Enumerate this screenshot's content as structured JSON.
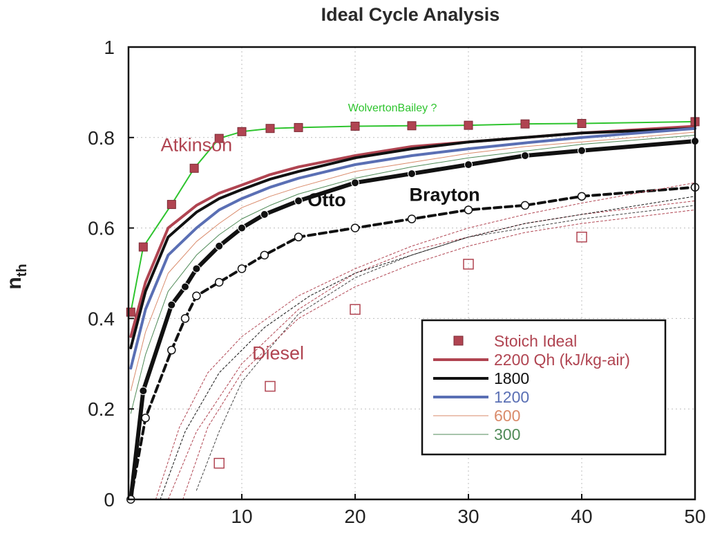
{
  "chart_data": {
    "type": "line",
    "title": "Ideal Cycle Analysis",
    "xlabel": "",
    "ylabel": "n",
    "ylabel_subscript": "th",
    "xlim": [
      0,
      50
    ],
    "ylim": [
      0,
      1
    ],
    "x_ticks": [
      10,
      20,
      30,
      40,
      50
    ],
    "y_ticks": [
      0,
      0.2,
      0.4,
      0.6,
      0.8,
      1
    ],
    "y_tick_labels": [
      "0",
      "0.2",
      "0.4",
      "0.6",
      "0.8",
      "1"
    ],
    "grid": true,
    "legend_position": "lower-right",
    "legend": [
      {
        "label": "Stoich Ideal",
        "color": "#b04451",
        "marker": "square"
      },
      {
        "label": "2200 Qh (kJ/kg-air)",
        "color": "#b04451",
        "width": 4
      },
      {
        "label": "1800",
        "color": "#111111",
        "width": 4
      },
      {
        "label": "1200",
        "color": "#5a6fb4",
        "width": 4
      },
      {
        "label": "600",
        "color": "#d98a6a",
        "width": 1
      },
      {
        "label": "300",
        "color": "#4f8a57",
        "width": 1
      }
    ],
    "annotations": [
      {
        "text": "Atkinson",
        "x": 6.0,
        "y": 0.77,
        "color": "#b04451",
        "size": 27,
        "bold": false
      },
      {
        "text": "WolvertonBailey ?",
        "x": 23.3,
        "y": 0.858,
        "color": "#2ec42e",
        "size": 16,
        "bold": false
      },
      {
        "text": "Otto",
        "x": 17.5,
        "y": 0.648,
        "color": "#111111",
        "size": 27,
        "bold": true
      },
      {
        "text": "Brayton",
        "x": 27.9,
        "y": 0.66,
        "color": "#111111",
        "size": 27,
        "bold": true
      },
      {
        "text": "Diesel",
        "x": 13.2,
        "y": 0.31,
        "color": "#b04451",
        "size": 27,
        "bold": false
      }
    ],
    "series": [
      {
        "name": "WolvertonBailey ?",
        "group": "Stoich Ideal",
        "color": "#2ec42e",
        "width": 2,
        "dash": "",
        "marker": "square",
        "marker_color": "#b04451",
        "x": [
          0.2,
          1.3,
          3.8,
          5.8,
          8,
          10,
          12.5,
          15,
          20,
          25,
          30,
          35,
          40,
          50
        ],
        "y": [
          0.414,
          0.558,
          0.652,
          0.732,
          0.798,
          0.813,
          0.82,
          0.822,
          0.825,
          0.826,
          0.827,
          0.83,
          0.831,
          0.835
        ]
      },
      {
        "name": "Atkinson 2200",
        "color": "#b04451",
        "width": 4,
        "dash": "",
        "x": [
          0.2,
          1.5,
          3.5,
          6,
          8,
          10,
          12.5,
          15,
          20,
          25,
          30,
          35,
          40,
          50
        ],
        "y": [
          0.36,
          0.48,
          0.6,
          0.65,
          0.677,
          0.695,
          0.718,
          0.735,
          0.76,
          0.78,
          0.79,
          0.8,
          0.81,
          0.825
        ]
      },
      {
        "name": "Atkinson 1800",
        "color": "#111111",
        "width": 4,
        "dash": "",
        "x": [
          0.2,
          1.5,
          3.5,
          6,
          8,
          10,
          12.5,
          15,
          20,
          25,
          30,
          35,
          40,
          50
        ],
        "y": [
          0.335,
          0.46,
          0.58,
          0.635,
          0.665,
          0.685,
          0.708,
          0.725,
          0.755,
          0.775,
          0.79,
          0.8,
          0.81,
          0.82
        ]
      },
      {
        "name": "Atkinson 1200",
        "color": "#5a6fb4",
        "width": 4,
        "dash": "",
        "x": [
          0.2,
          1.5,
          3.5,
          6,
          8,
          10,
          12.5,
          15,
          20,
          25,
          30,
          35,
          40,
          50
        ],
        "y": [
          0.29,
          0.42,
          0.54,
          0.6,
          0.64,
          0.665,
          0.69,
          0.71,
          0.74,
          0.76,
          0.775,
          0.788,
          0.8,
          0.82
        ]
      },
      {
        "name": "Atkinson 600",
        "color": "#d98a6a",
        "width": 1,
        "dash": "",
        "x": [
          0.2,
          1.5,
          3.5,
          6,
          8,
          10,
          12.5,
          15,
          20,
          25,
          30,
          35,
          40,
          50
        ],
        "y": [
          0.24,
          0.37,
          0.5,
          0.57,
          0.61,
          0.645,
          0.67,
          0.69,
          0.725,
          0.745,
          0.765,
          0.78,
          0.79,
          0.812
        ]
      },
      {
        "name": "Atkinson 300",
        "color": "#4f8a57",
        "width": 1,
        "dash": "",
        "x": [
          0.2,
          1.5,
          3.5,
          6,
          8,
          10,
          12.5,
          15,
          20,
          25,
          30,
          35,
          40,
          50
        ],
        "y": [
          0.19,
          0.32,
          0.46,
          0.54,
          0.585,
          0.62,
          0.65,
          0.675,
          0.71,
          0.735,
          0.755,
          0.77,
          0.785,
          0.805
        ]
      },
      {
        "name": "Otto",
        "color": "#111111",
        "width": 6,
        "dash": "",
        "marker": "dot",
        "x": [
          0.2,
          1.3,
          3.8,
          5,
          6,
          8,
          10,
          12,
          15,
          20,
          25,
          30,
          35,
          40,
          50
        ],
        "y": [
          0.0,
          0.24,
          0.43,
          0.47,
          0.51,
          0.56,
          0.6,
          0.63,
          0.66,
          0.7,
          0.72,
          0.74,
          0.76,
          0.771,
          0.792
        ]
      },
      {
        "name": "Brayton",
        "color": "#111111",
        "width": 4,
        "dash": "10,6",
        "marker": "circle",
        "x": [
          0.2,
          1.5,
          3.8,
          5,
          6,
          8,
          10,
          12,
          15,
          20,
          25,
          30,
          35,
          40,
          50
        ],
        "y": [
          0.0,
          0.18,
          0.33,
          0.4,
          0.45,
          0.48,
          0.51,
          0.54,
          0.58,
          0.6,
          0.62,
          0.64,
          0.65,
          0.67,
          0.69
        ]
      },
      {
        "name": "Diesel 300",
        "color": "#444444",
        "width": 1,
        "dash": "3,3",
        "x": [
          6,
          8,
          10,
          15,
          20,
          25,
          30,
          35,
          40,
          50
        ],
        "y": [
          0.02,
          0.15,
          0.26,
          0.41,
          0.49,
          0.54,
          0.58,
          0.6,
          0.62,
          0.65
        ]
      },
      {
        "name": "Diesel 600",
        "color": "#b04451",
        "width": 1,
        "dash": "3,3",
        "x": [
          4.8,
          7,
          10,
          15,
          20,
          25,
          30,
          35,
          40,
          50
        ],
        "y": [
          0.0,
          0.16,
          0.28,
          0.4,
          0.47,
          0.52,
          0.56,
          0.59,
          0.61,
          0.64
        ]
      },
      {
        "name": "Diesel 1200",
        "color": "#b04451",
        "width": 1,
        "dash": "3,3",
        "x": [
          3.5,
          6,
          10,
          15,
          20,
          25,
          30,
          35,
          40,
          50
        ],
        "y": [
          0.0,
          0.15,
          0.3,
          0.42,
          0.5,
          0.55,
          0.58,
          0.61,
          0.63,
          0.66
        ]
      },
      {
        "name": "Diesel 1800",
        "color": "#111111",
        "width": 1,
        "dash": "3,3",
        "x": [
          2.8,
          5,
          8,
          12,
          16,
          20,
          25,
          30,
          35,
          40,
          50
        ],
        "y": [
          0.0,
          0.15,
          0.28,
          0.38,
          0.45,
          0.5,
          0.54,
          0.58,
          0.61,
          0.63,
          0.67
        ]
      },
      {
        "name": "Diesel 2200",
        "color": "#b04451",
        "width": 1,
        "dash": "3,3",
        "x": [
          2.4,
          4.5,
          7,
          10,
          15,
          20,
          25,
          30,
          35,
          40,
          50
        ],
        "y": [
          0.0,
          0.16,
          0.28,
          0.36,
          0.45,
          0.51,
          0.56,
          0.6,
          0.63,
          0.655,
          0.7
        ]
      },
      {
        "name": "Diesel Stoich Ideal",
        "color": "#b04451",
        "width": 1.5,
        "dash": "",
        "marker": "open-square",
        "line": false,
        "x": [
          8,
          12.5,
          20,
          30,
          40
        ],
        "y": [
          0.08,
          0.25,
          0.42,
          0.52,
          0.58
        ]
      }
    ]
  }
}
